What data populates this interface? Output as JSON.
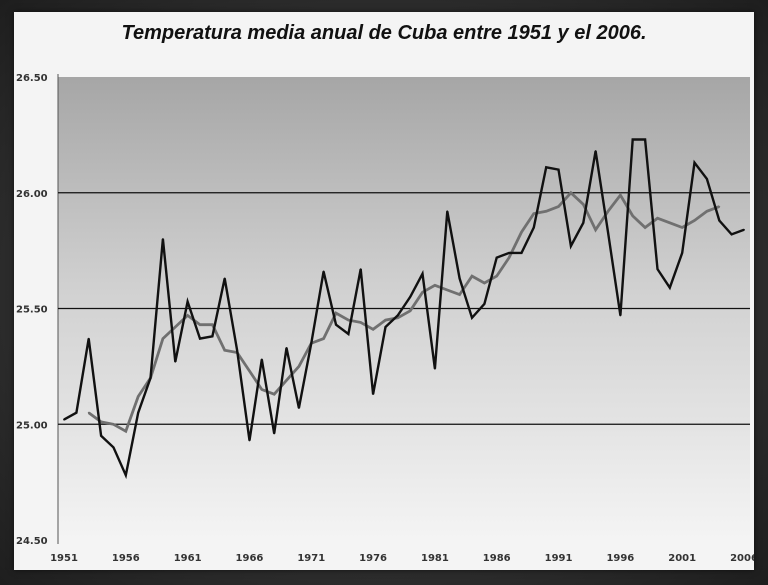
{
  "chart_data": {
    "type": "line",
    "title": "Temperatura media anual de Cuba entre 1951 y el 2006.",
    "xlabel": "",
    "ylabel": "",
    "ylim": [
      24.5,
      26.5
    ],
    "xlim": [
      1951,
      2006
    ],
    "yticks": [
      "24.50",
      "25.00",
      "25.50",
      "26.00",
      "26.50"
    ],
    "ytick_values": [
      24.5,
      25.0,
      25.5,
      26.0,
      26.5
    ],
    "xticks": [
      "1951",
      "1956",
      "1961",
      "1966",
      "1971",
      "1976",
      "1981",
      "1986",
      "1991",
      "1996",
      "2001",
      "2006"
    ],
    "xtick_values": [
      1951,
      1956,
      1961,
      1966,
      1971,
      1976,
      1981,
      1986,
      1991,
      1996,
      2001,
      2006
    ],
    "grid": "horizontal",
    "legend": "none",
    "colors": {
      "annual": "#111111",
      "smoothed": "#707070",
      "plot_top": "#a9a9a9",
      "plot_bottom": "#f2f2f2"
    },
    "series": [
      {
        "x": [
          1951,
          1952,
          1953,
          1954,
          1955,
          1956,
          1957,
          1958,
          1959,
          1960,
          1961,
          1962,
          1963,
          1964,
          1965,
          1966,
          1967,
          1968,
          1969,
          1970,
          1971,
          1972,
          1973,
          1974,
          1975,
          1976,
          1977,
          1978,
          1979,
          1980,
          1981,
          1982,
          1983,
          1984,
          1985,
          1986,
          1987,
          1988,
          1989,
          1990,
          1991,
          1992,
          1993,
          1994,
          1995,
          1996,
          1997,
          1998,
          1999,
          2000,
          2001,
          2002,
          2003,
          2004,
          2005,
          2006
        ],
        "values": [
          25.02,
          25.05,
          25.37,
          24.95,
          24.9,
          24.78,
          25.05,
          25.2,
          25.8,
          25.27,
          25.53,
          25.37,
          25.38,
          25.63,
          25.32,
          24.93,
          25.28,
          24.96,
          25.33,
          25.07,
          25.35,
          25.66,
          25.43,
          25.39,
          25.67,
          25.13,
          25.42,
          25.47,
          25.55,
          25.65,
          25.24,
          25.92,
          25.63,
          25.46,
          25.52,
          25.72,
          25.74,
          25.74,
          25.85,
          26.11,
          26.1,
          25.77,
          25.87,
          26.18,
          25.83,
          25.47,
          26.23,
          26.23,
          25.67,
          25.59,
          25.74,
          26.13,
          26.06,
          25.88,
          25.82,
          25.84
        ]
      },
      {
        "x": [
          1953,
          1954,
          1955,
          1956,
          1957,
          1958,
          1959,
          1960,
          1961,
          1962,
          1963,
          1964,
          1965,
          1966,
          1967,
          1968,
          1969,
          1970,
          1971,
          1972,
          1973,
          1974,
          1975,
          1976,
          1977,
          1978,
          1979,
          1980,
          1981,
          1982,
          1983,
          1984,
          1985,
          1986,
          1987,
          1988,
          1989,
          1990,
          1991,
          1992,
          1993,
          1994,
          1995,
          1996,
          1997,
          1998,
          1999,
          2000,
          2001,
          2002,
          2003,
          2004
        ],
        "values": [
          25.05,
          25.01,
          25.0,
          24.97,
          25.12,
          25.2,
          25.37,
          25.42,
          25.47,
          25.43,
          25.43,
          25.32,
          25.31,
          25.23,
          25.15,
          25.13,
          25.19,
          25.25,
          25.35,
          25.37,
          25.48,
          25.45,
          25.44,
          25.41,
          25.45,
          25.46,
          25.49,
          25.57,
          25.6,
          25.58,
          25.56,
          25.64,
          25.61,
          25.64,
          25.72,
          25.83,
          25.91,
          25.92,
          25.94,
          26.0,
          25.95,
          25.84,
          25.92,
          25.99,
          25.9,
          25.85,
          25.89,
          25.87,
          25.85,
          25.88,
          25.92,
          25.94
        ]
      }
    ]
  }
}
